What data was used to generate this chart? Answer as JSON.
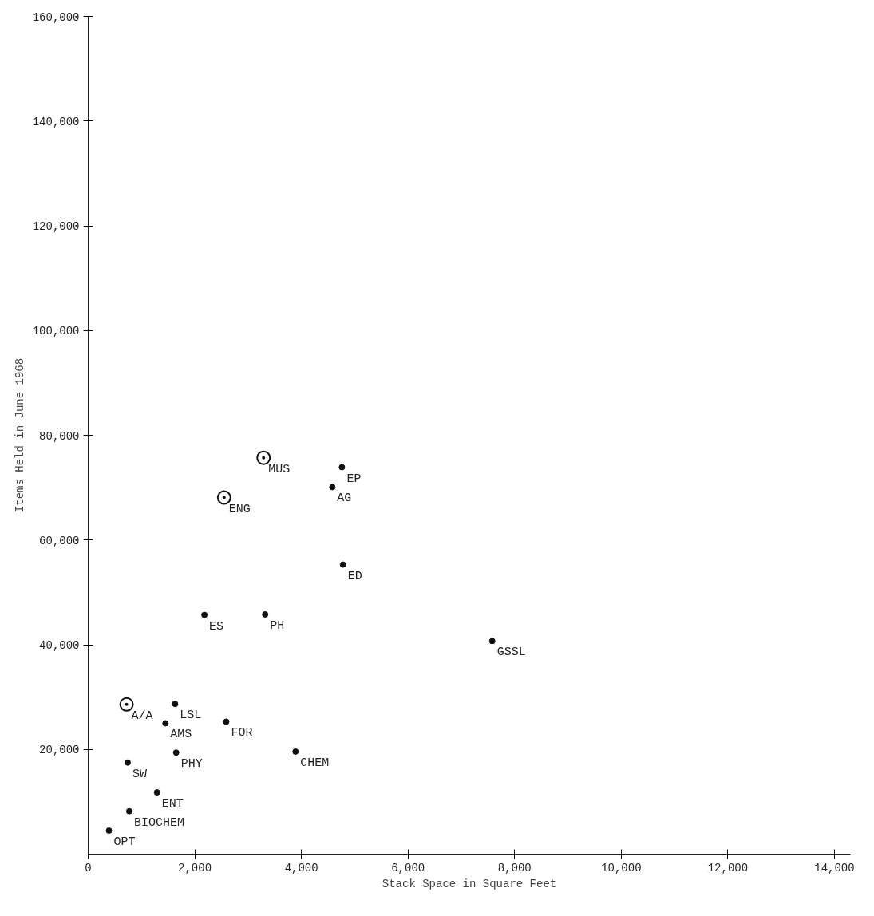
{
  "chart_data": {
    "type": "scatter",
    "xlabel": "Stack Space in Square Feet",
    "ylabel": "Items Held in June 1968",
    "xlim": [
      0,
      14300
    ],
    "ylim": [
      0,
      160000
    ],
    "xticks": [
      0,
      {
        "value": 2000,
        "label": "2,000"
      },
      {
        "value": 4000,
        "label": "4,000"
      },
      {
        "value": 6000,
        "label": "6,000"
      },
      {
        "value": 8000,
        "label": "8,000"
      },
      {
        "value": 10000,
        "label": "10,000"
      },
      {
        "value": 12000,
        "label": "12,000"
      },
      {
        "value": 14000,
        "label": "14,000"
      }
    ],
    "yticks": [
      {
        "value": 20000,
        "label": "20,000"
      },
      {
        "value": 40000,
        "label": "40,000"
      },
      {
        "value": 60000,
        "label": "60,000"
      },
      {
        "value": 80000,
        "label": "80,000"
      },
      {
        "value": 100000,
        "label": "100,000"
      },
      {
        "value": 120000,
        "label": "120,000"
      },
      {
        "value": 140000,
        "label": "140,000"
      },
      {
        "value": 160000,
        "label": "160,000"
      }
    ],
    "grid": false,
    "series": [
      {
        "color": "#111111",
        "marker": "circle",
        "x": [
          1630,
          1450,
          2590,
          1650,
          3890,
          740,
          1290,
          770,
          390,
          4760,
          4580,
          4780,
          2180,
          3320,
          7580
        ],
        "values": [
          28700,
          25000,
          25300,
          19400,
          19600,
          17500,
          11800,
          8200,
          4500,
          73900,
          70100,
          55300,
          45700,
          45800,
          40700
        ]
      },
      {
        "color": "#111111",
        "marker": "circle_dot",
        "x": [
          720,
          3290,
          2550
        ],
        "values": [
          28600,
          75700,
          68100
        ]
      }
    ],
    "annotations": [
      {
        "text": "LSL",
        "x": 1630,
        "y": 28700
      },
      {
        "text": "AMS",
        "x": 1450,
        "y": 25000
      },
      {
        "text": "FOR",
        "x": 2590,
        "y": 25300
      },
      {
        "text": "PHY",
        "x": 1650,
        "y": 19400
      },
      {
        "text": "CHEM",
        "x": 3890,
        "y": 19600
      },
      {
        "text": "SW",
        "x": 740,
        "y": 17500
      },
      {
        "text": "ENT",
        "x": 1290,
        "y": 11800
      },
      {
        "text": "BIOCHEM",
        "x": 770,
        "y": 8200
      },
      {
        "text": "OPT",
        "x": 390,
        "y": 4500
      },
      {
        "text": "EP",
        "x": 4760,
        "y": 73900
      },
      {
        "text": "AG",
        "x": 4580,
        "y": 70100
      },
      {
        "text": "ED",
        "x": 4780,
        "y": 55300
      },
      {
        "text": "ES",
        "x": 2180,
        "y": 45700
      },
      {
        "text": "PH",
        "x": 3320,
        "y": 45800
      },
      {
        "text": "GSSL",
        "x": 7580,
        "y": 40700
      },
      {
        "text": "A/A",
        "x": 720,
        "y": 28600
      },
      {
        "text": "MUS",
        "x": 3290,
        "y": 75700
      },
      {
        "text": "ENG",
        "x": 2550,
        "y": 68100
      }
    ]
  }
}
